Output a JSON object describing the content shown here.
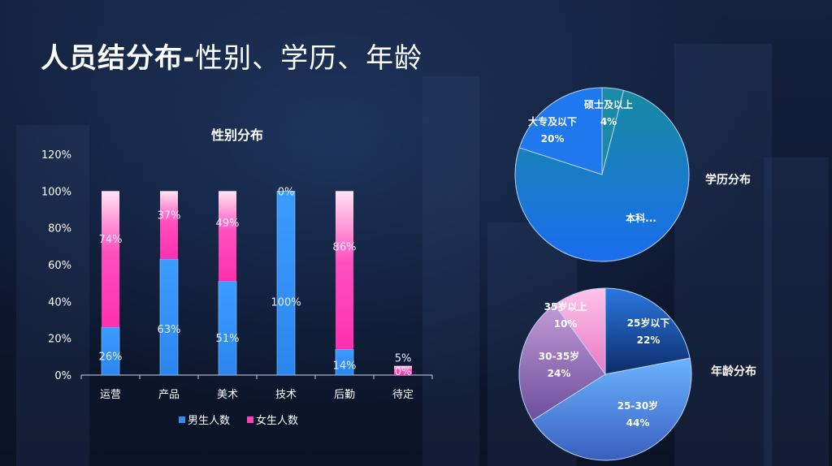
{
  "page": {
    "title_bold": "人员结分布-",
    "title_rest": "性别、学历、年龄"
  },
  "chart_data": [
    {
      "type": "bar",
      "stacked": true,
      "title": "性别分布",
      "categories": [
        "运营",
        "产品",
        "美术",
        "技术",
        "后勤",
        "待定"
      ],
      "series": [
        {
          "name": "男生人数",
          "color": "#2f8ff0",
          "values": [
            26,
            63,
            51,
            100,
            14,
            0
          ],
          "labels": [
            "26%",
            "63%",
            "51%",
            "100%",
            "14%",
            "0%"
          ]
        },
        {
          "name": "女生人数",
          "color": "#ff3fb4",
          "values": [
            74,
            37,
            49,
            0,
            86,
            5
          ],
          "labels": [
            "74%",
            "37%",
            "49%",
            "0%",
            "86%",
            "5%"
          ]
        }
      ],
      "ylim": [
        0,
        120
      ],
      "yticks": [
        "0%",
        "20%",
        "40%",
        "60%",
        "80%",
        "100%",
        "120%"
      ],
      "legend": "bottom"
    },
    {
      "type": "pie",
      "title": "学历分布",
      "slices": [
        {
          "label": "硕士及以上",
          "value_label": "4%",
          "value": 4,
          "color": "#1d8fb0"
        },
        {
          "label": "本科...",
          "value_label": "",
          "value": 76,
          "color": "#1a6fe0"
        },
        {
          "label": "大专及以下",
          "value_label": "20%",
          "value": 20,
          "color": "#1f7cf0"
        }
      ]
    },
    {
      "type": "pie",
      "title": "年龄分布",
      "slices": [
        {
          "label": "25岁以下",
          "value_label": "22%",
          "value": 22,
          "color": "#1a55b8"
        },
        {
          "label": "25-30岁",
          "value_label": "44%",
          "value": 44,
          "color": "#5aa6f2"
        },
        {
          "label": "30-35岁",
          "value_label": "24%",
          "value": 24,
          "color": "#9a79c4"
        },
        {
          "label": "35岁以上",
          "value_label": "10%",
          "value": 10,
          "color": "#f29ed6"
        }
      ]
    }
  ]
}
